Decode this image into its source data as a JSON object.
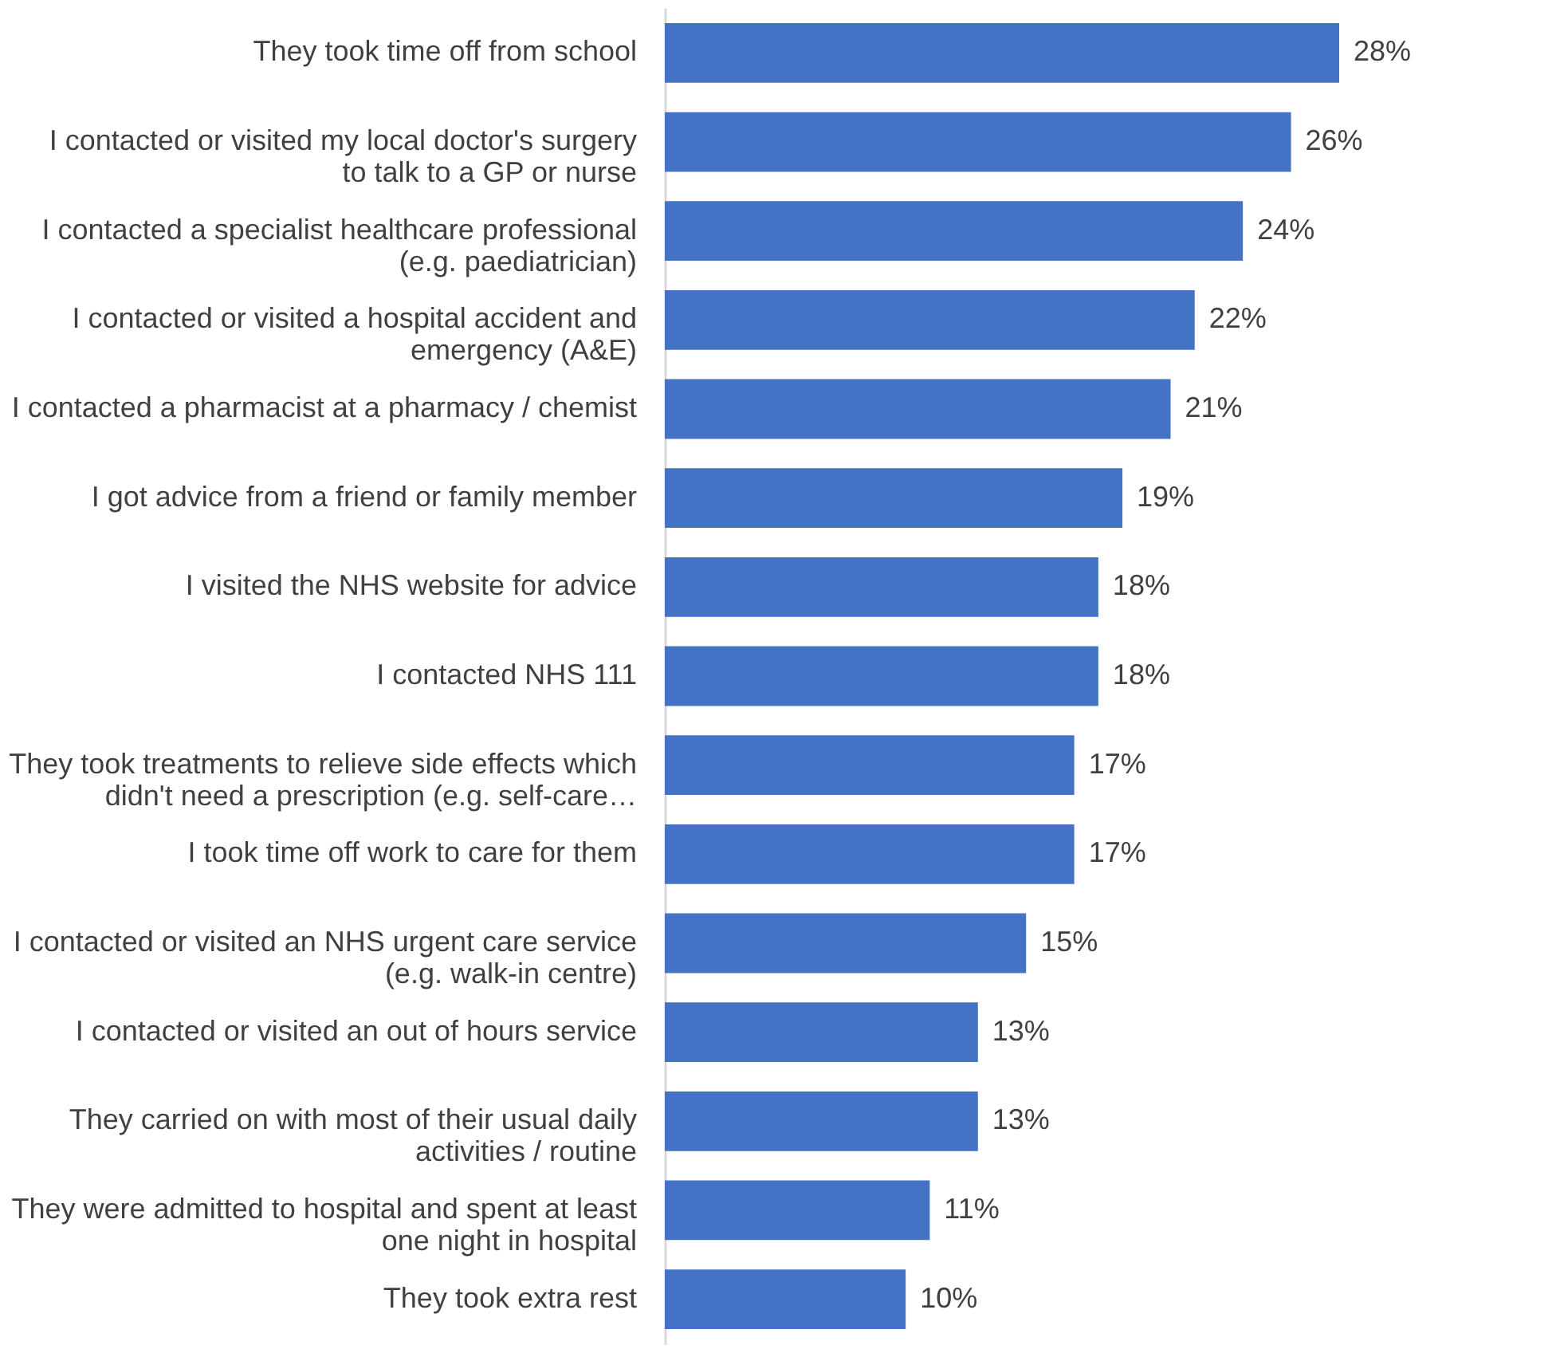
{
  "chart_data": {
    "type": "bar",
    "orientation": "horizontal",
    "value_labels": [
      "28%",
      "26%",
      "24%",
      "22%",
      "21%",
      "19%",
      "18%",
      "18%",
      "17%",
      "17%",
      "15%",
      "13%",
      "13%",
      "11%",
      "10%"
    ],
    "categories": [
      "They took time off from school",
      "I contacted or visited my local doctor's surgery to talk to a GP or nurse",
      "I contacted a specialist healthcare professional (e.g. paediatrician)",
      "I contacted or visited a hospital accident and emergency (A&E)",
      "I contacted a pharmacist at a pharmacy / chemist",
      "I got advice from a friend or family member",
      "I visited the NHS website for advice",
      "I contacted NHS 111",
      "They took treatments to relieve side effects which didn't need a prescription (e.g. self-care…",
      "I took time off work to care for them",
      "I contacted or visited an NHS urgent care service (e.g. walk-in centre)",
      "I contacted or visited an out of hours service",
      "They carried on with most of their usual daily activities / routine",
      "They were admitted to hospital and spent at least one night in hospital",
      "They took extra rest"
    ],
    "values": [
      28,
      26,
      24,
      22,
      21,
      19,
      18,
      18,
      17,
      17,
      15,
      13,
      13,
      11,
      10
    ],
    "color": "#4472c4"
  }
}
